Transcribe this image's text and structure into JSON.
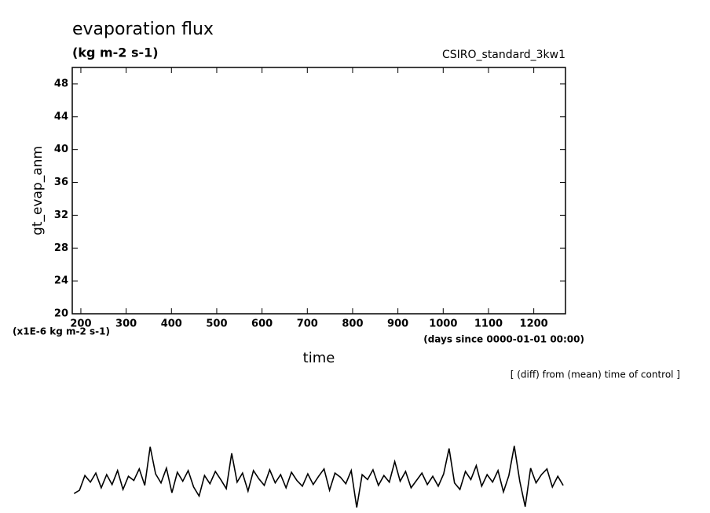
{
  "chart_data": {
    "type": "line",
    "title": "evaporation flux",
    "subtitle": "(kg m-2 s-1)",
    "run_label": "CSIRO_standard_3kw1",
    "ylabel": "gt_evap_anm",
    "yunits": "(x1E-6 kg m-2 s-1)",
    "xunits": "(days since 0000-01-01 00:00)",
    "xlabel": "time",
    "note": "[ (diff) from (mean) time of control ]",
    "xlim": [
      181,
      1270
    ],
    "ylim": [
      20,
      50
    ],
    "xticks": [
      200,
      300,
      400,
      500,
      600,
      700,
      800,
      900,
      1000,
      1100,
      1200
    ],
    "yticks": [
      20,
      24,
      28,
      32,
      36,
      40,
      44,
      48
    ],
    "x": [
      185,
      197,
      209,
      221,
      233,
      245,
      257,
      269,
      281,
      293,
      305,
      317,
      329,
      341,
      353,
      365,
      377,
      389,
      401,
      413,
      425,
      437,
      449,
      461,
      473,
      485,
      497,
      509,
      521,
      533,
      545,
      557,
      569,
      581,
      593,
      605,
      617,
      629,
      641,
      653,
      665,
      677,
      689,
      701,
      713,
      725,
      737,
      749,
      761,
      773,
      785,
      797,
      809,
      821,
      833,
      845,
      857,
      869,
      881,
      893,
      905,
      917,
      929,
      941,
      953,
      965,
      977,
      989,
      1001,
      1013,
      1025,
      1037,
      1049,
      1061,
      1073,
      1085,
      1097,
      1109,
      1121,
      1133,
      1145,
      1157,
      1169,
      1181,
      1193,
      1205,
      1217,
      1229,
      1241,
      1253,
      1265
    ],
    "series": [
      {
        "color": "#000000",
        "values": [
          -1.9,
          -1.5,
          0.3,
          -0.5,
          0.6,
          -1.2,
          0.4,
          -0.8,
          0.9,
          -1.4,
          0.2,
          -0.3,
          1.1,
          -0.9,
          3.8,
          0.5,
          -0.6,
          1.2,
          -1.8,
          0.7,
          -0.4,
          0.9,
          -1.1,
          -2.2,
          0.3,
          -0.7,
          0.8,
          -0.2,
          -1.3,
          3.0,
          -0.5,
          0.6,
          -1.6,
          0.9,
          -0.1,
          -0.9,
          1.0,
          -0.6,
          0.4,
          -1.2,
          0.7,
          -0.3,
          -1.0,
          0.5,
          -0.8,
          0.2,
          1.1,
          -1.5,
          0.6,
          0.1,
          -0.7,
          0.9,
          -3.6,
          0.4,
          -0.2,
          1.0,
          -0.9,
          0.3,
          -0.5,
          2.0,
          -0.4,
          0.8,
          -1.2,
          -0.3,
          0.6,
          -0.8,
          0.2,
          -1.0,
          0.5,
          3.6,
          -0.6,
          -1.4,
          0.8,
          -0.2,
          1.5,
          -1.0,
          0.4,
          -0.5,
          0.9,
          -1.7,
          0.3,
          3.9,
          -0.4,
          -3.5,
          1.2,
          -0.6,
          0.4,
          1.1,
          -1.1,
          0.2,
          -0.9
        ]
      }
    ]
  }
}
